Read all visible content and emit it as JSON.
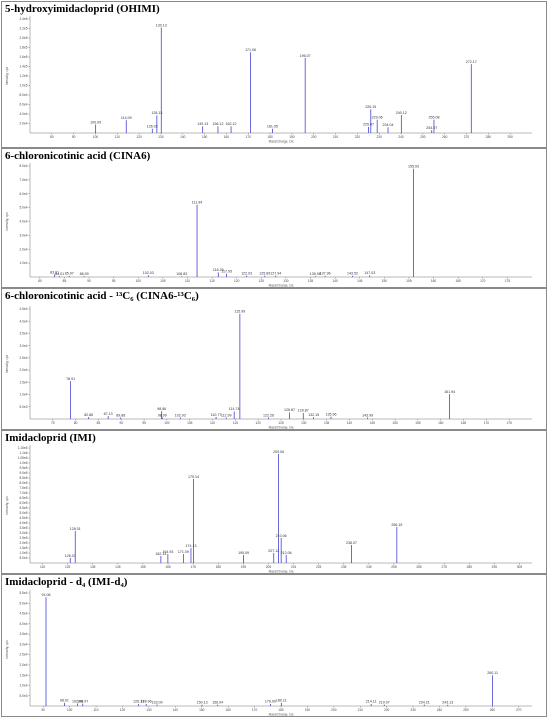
{
  "colors": {
    "bar": "#2a2ad0",
    "axis": "#777777",
    "text": "#444444"
  },
  "chart_data": [
    {
      "type": "bar",
      "title": "5-hydroxyimidacloprid (OHIMI)",
      "xlabel": "Mass/Charge, Da",
      "ylabel": "Intensity, cps",
      "xlim": [
        70,
        300
      ],
      "xticks": [
        80,
        90,
        100,
        110,
        120,
        130,
        140,
        150,
        160,
        170,
        180,
        190,
        200,
        210,
        220,
        230,
        240,
        250,
        260,
        270,
        280,
        290
      ],
      "ylim": [
        0,
        2.4
      ],
      "yticks_labels": [
        "2.0e4",
        "4.0e4",
        "6.0e4",
        "8.0e4",
        "1.0e5",
        "1.2e5",
        "1.4e5",
        "1.6e5",
        "1.8e5",
        "2.0e5",
        "2.2e5",
        "2.4e5"
      ],
      "ytick_values": [
        0.2,
        0.4,
        0.6,
        0.8,
        1.0,
        1.2,
        1.4,
        1.6,
        1.8,
        2.0,
        2.2,
        2.4
      ],
      "x": [
        100.09,
        114.09,
        126.02,
        128.13,
        130.13,
        149.13,
        156.12,
        162.12,
        171.06,
        181.05,
        196.07,
        225.07,
        226.15,
        229.06,
        234.04,
        240.12,
        254.07,
        255.08,
        272.17
      ],
      "values": [
        0.18,
        0.27,
        0.09,
        0.37,
        2.22,
        0.14,
        0.14,
        0.14,
        1.7,
        0.09,
        1.58,
        0.13,
        0.5,
        0.28,
        0.12,
        0.38,
        0.06,
        0.28,
        1.45
      ],
      "labels": [
        "100.09",
        "114.09",
        "126.02",
        "128.13",
        "130.13",
        "149.13",
        "156.12",
        "162.12",
        "171.06",
        "181.05",
        "196.07",
        "225.07",
        "226.15",
        "229.06",
        "234.04",
        "240.12",
        "254.07",
        "255.08",
        "272.17"
      ]
    },
    {
      "type": "bar",
      "title": "6-chloronicotinic acid (CINA6)",
      "xlabel": "Mass/Charge, Da",
      "ylabel": "Intensity, cps",
      "xlim": [
        78,
        180
      ],
      "xticks": [
        80,
        85,
        90,
        95,
        100,
        105,
        110,
        115,
        120,
        125,
        130,
        135,
        140,
        145,
        150,
        155,
        160,
        165,
        170,
        175
      ],
      "ylim": [
        0,
        8
      ],
      "yticks_labels": [
        "1.0e4",
        "2.0e4",
        "3.0e4",
        "4.0e4",
        "5.0e4",
        "6.0e4",
        "7.0e4",
        "8.0e4"
      ],
      "ytick_values": [
        1,
        2,
        3,
        4,
        5,
        6,
        7,
        8
      ],
      "x": [
        83.01,
        84.01,
        85.97,
        88.99,
        102.03,
        108.83,
        111.94,
        116.25,
        117.95,
        122.03,
        125.69,
        127.94,
        135.96,
        137.96,
        143.52,
        147.03,
        155.93
      ],
      "values": [
        0.18,
        0.06,
        0.08,
        0.06,
        0.12,
        0.05,
        5.2,
        0.33,
        0.25,
        0.09,
        0.09,
        0.1,
        0.06,
        0.08,
        0.09,
        0.12,
        7.8
      ],
      "labels": [
        "83.01",
        "84.01",
        "85.97",
        "88.99",
        "102.03",
        "108.83",
        "111.94",
        "116.25",
        "117.95",
        "122.03",
        "125.69",
        "127.94",
        "135.96",
        "137.96",
        "143.52",
        "147.03",
        "155.93"
      ]
    },
    {
      "type": "bar",
      "title": "6-chloronicotinic acid - ¹³C₆ (CINA6-¹³C₆)",
      "xlabel": "Mass/Charge, Da",
      "ylabel": "Intensity, cps",
      "xlim": [
        70,
        180
      ],
      "xticks": [
        75,
        80,
        85,
        90,
        95,
        100,
        105,
        110,
        115,
        120,
        125,
        130,
        135,
        140,
        145,
        150,
        155,
        160,
        165,
        170,
        175
      ],
      "ylim": [
        0,
        4.5
      ],
      "yticks_labels": [
        "5.0e3",
        "1.0e4",
        "1.5e4",
        "2.0e4",
        "2.5e4",
        "3.0e4",
        "3.5e4",
        "4.0e4",
        "4.5e4"
      ],
      "ytick_values": [
        0.5,
        1.0,
        1.5,
        2.0,
        2.5,
        3.0,
        3.5,
        4.0,
        4.5
      ],
      "x": [
        78.91,
        82.86,
        87.13,
        89.88,
        98.86,
        98.99,
        102.93,
        110.77,
        112.99,
        114.74,
        115.99,
        122.26,
        126.87,
        129.87,
        132.15,
        135.96,
        143.99,
        161.94
      ],
      "values": [
        1.55,
        0.08,
        0.12,
        0.06,
        0.32,
        0.06,
        0.06,
        0.08,
        0.06,
        0.31,
        4.3,
        0.06,
        0.27,
        0.25,
        0.07,
        0.09,
        0.06,
        1.02
      ],
      "labels": [
        "78.91",
        "82.86",
        "87.13",
        "89.88",
        "98.86",
        "98.99",
        "102.93",
        "110.77",
        "112.99",
        "114.74",
        "115.99",
        "122.26",
        "126.87",
        "129.87",
        "132.15",
        "135.96",
        "143.99",
        "161.94"
      ]
    },
    {
      "type": "bar",
      "title": "Imidacloprid (IMI)",
      "xlabel": "Mass/Charge, Da",
      "ylabel": "Intensity, cps",
      "xlim": [
        110,
        310
      ],
      "xticks": [
        115,
        125,
        135,
        145,
        155,
        165,
        175,
        185,
        195,
        205,
        215,
        225,
        235,
        245,
        255,
        265,
        275,
        285,
        295,
        305
      ],
      "ylim": [
        0,
        1.15
      ],
      "yticks_labels": [
        "5.0e4",
        "1.0e5",
        "1.5e5",
        "2.0e5",
        "2.5e5",
        "3.0e5",
        "3.5e5",
        "4.0e5",
        "4.5e5",
        "5.0e5",
        "5.5e5",
        "6.0e5",
        "6.5e5",
        "7.0e5",
        "7.5e5",
        "8.0e5",
        "8.5e5",
        "9.0e5",
        "9.5e5",
        "1.0e6",
        "1.05e6",
        "1.1e6",
        "1.15e6"
      ],
      "ytick_values": [
        0.05,
        0.1,
        0.15,
        0.2,
        0.25,
        0.3,
        0.35,
        0.4,
        0.45,
        0.5,
        0.55,
        0.6,
        0.65,
        0.7,
        0.75,
        0.8,
        0.85,
        0.9,
        0.95,
        1.0,
        1.05,
        1.1,
        1.15
      ],
      "x": [
        126.03,
        128.01,
        162.14,
        164.93,
        171.09,
        174.13,
        175.14,
        195.09,
        207.12,
        209.06,
        210.06,
        212.06,
        238.07,
        256.15
      ],
      "values": [
        0.05,
        0.32,
        0.07,
        0.09,
        0.09,
        0.15,
        0.84,
        0.08,
        0.1,
        1.09,
        0.25,
        0.08,
        0.18,
        0.36
      ],
      "labels": [
        "126.03",
        "128.01",
        "162.14",
        "164.93",
        "171.09",
        "174.13",
        "175.14",
        "195.09",
        "207.12",
        "209.06",
        "210.06",
        "212.06",
        "238.07",
        "256.15"
      ]
    },
    {
      "type": "bar",
      "title": "Imidacloprid - d₄ (IMI-d₄)",
      "xlabel": "Mass/Charge, Da",
      "ylabel": "Intensity, cps",
      "xlim": [
        85,
        275
      ],
      "xticks": [
        90,
        100,
        110,
        120,
        130,
        140,
        150,
        160,
        170,
        180,
        190,
        200,
        210,
        220,
        230,
        240,
        250,
        260,
        270
      ],
      "ylim": [
        0,
        5.5
      ],
      "yticks_labels": [
        "5.0e3",
        "1.0e4",
        "1.5e4",
        "2.0e4",
        "2.5e4",
        "3.0e4",
        "3.5e4",
        "4.0e4",
        "4.5e4",
        "5.0e4",
        "5.5e4"
      ],
      "ytick_values": [
        0.5,
        1.0,
        1.5,
        2.0,
        2.5,
        3.0,
        3.5,
        4.0,
        4.5,
        5.0,
        5.5
      ],
      "x": [
        91.06,
        98.01,
        102.96,
        104.97,
        126.13,
        128.96,
        133.09,
        150.13,
        156.04,
        176.0,
        180.11,
        214.11,
        219.07,
        234.21,
        243.13,
        260.11
      ],
      "values": [
        5.3,
        0.15,
        0.12,
        0.12,
        0.1,
        0.1,
        0.07,
        0.06,
        0.06,
        0.1,
        0.15,
        0.1,
        0.07,
        0.07,
        0.06,
        1.5
      ],
      "labels": [
        "91.06",
        "98.01",
        "102.96",
        "104.97",
        "126.13",
        "128.96",
        "133.09",
        "150.13",
        "156.04",
        "176.00",
        "180.11",
        "214.11",
        "219.07",
        "234.21",
        "243.13",
        "260.11"
      ]
    }
  ]
}
